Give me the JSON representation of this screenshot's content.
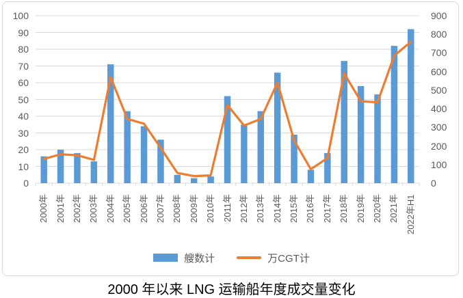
{
  "colors": {
    "bar": "#5B9BD5",
    "line": "#ED7D31",
    "grid": "#D9D9D9",
    "axis_text": "#595959",
    "border": "#D9D9D9"
  },
  "legend": {
    "bars_label": "艘数计",
    "line_label": "万CGT计"
  },
  "chart_data": {
    "type": "combo (bar + line)",
    "title": "2000 年以来 LNG 运输船年度成交量变化",
    "categories": [
      "2000年",
      "2001年",
      "2002年",
      "2003年",
      "2004年",
      "2005年",
      "2006年",
      "2007年",
      "2008年",
      "2009年",
      "2010年",
      "2011年",
      "2012年",
      "2013年",
      "2014年",
      "2015年",
      "2016年",
      "2017年",
      "2018年",
      "2019年",
      "2020年",
      "2021年",
      "2022年H1"
    ],
    "series": [
      {
        "name": "艘数计",
        "type": "bar",
        "axis": "left",
        "values": [
          16,
          20,
          18,
          13,
          71,
          43,
          34,
          26,
          5,
          3,
          4,
          52,
          35,
          43,
          66,
          29,
          8,
          18,
          73,
          58,
          53,
          82,
          92
        ]
      },
      {
        "name": "万CGT计",
        "type": "line",
        "axis": "right",
        "values": [
          130,
          155,
          150,
          125,
          570,
          345,
          320,
          190,
          55,
          38,
          42,
          420,
          310,
          345,
          540,
          230,
          75,
          135,
          590,
          440,
          435,
          685,
          760
        ]
      }
    ],
    "left_axis": {
      "min": 0,
      "max": 100,
      "step": 10,
      "ticks": [
        0,
        10,
        20,
        30,
        40,
        50,
        60,
        70,
        80,
        90,
        100
      ]
    },
    "right_axis": {
      "min": 0,
      "max": 900,
      "step": 100,
      "ticks": [
        0,
        100,
        200,
        300,
        400,
        500,
        600,
        700,
        800,
        900
      ]
    },
    "grid": true,
    "legend_position": "bottom"
  }
}
